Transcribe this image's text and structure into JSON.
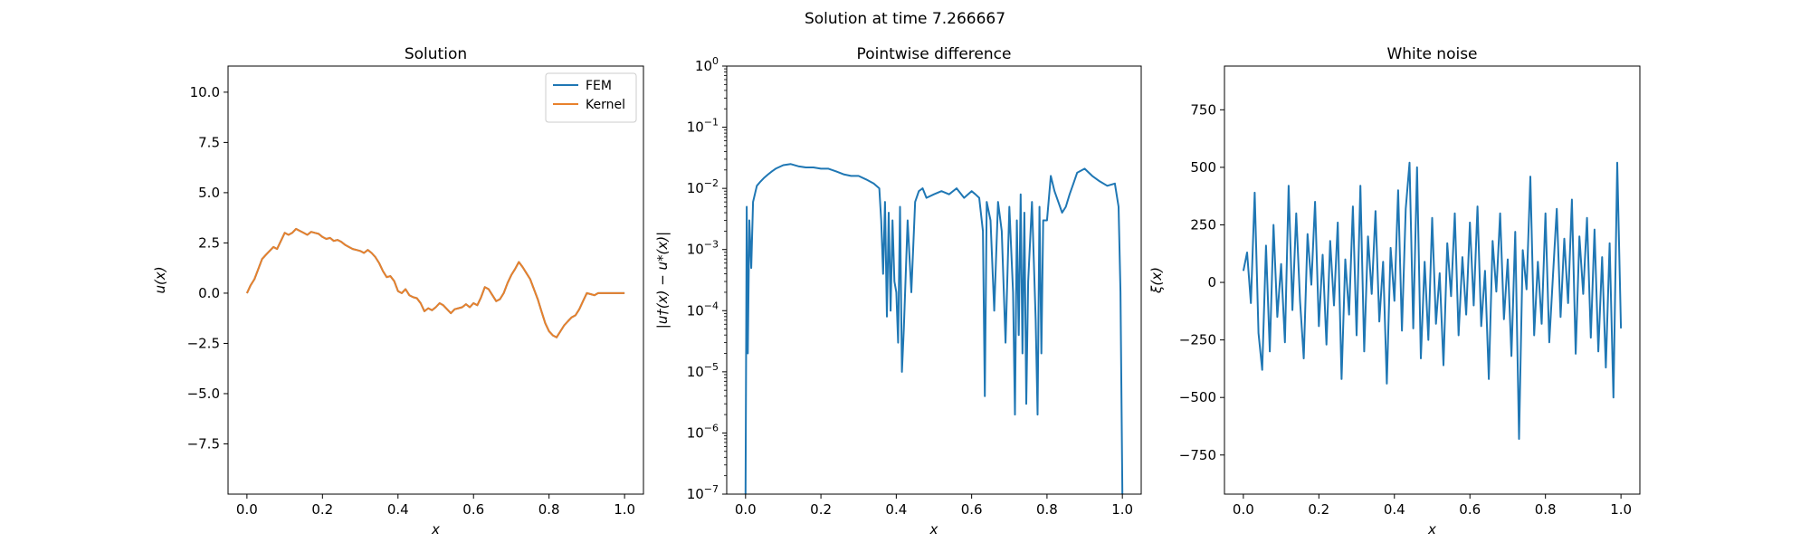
{
  "figure": {
    "suptitle": "Solution at time 7.266667"
  },
  "colors": {
    "series_blue": "#1f77b4",
    "series_orange": "#e8812c"
  },
  "chart_data": [
    {
      "type": "line",
      "title": "Solution",
      "xlabel": "x",
      "ylabel": "u(x)",
      "xlim": [
        -0.05,
        1.05
      ],
      "ylim": [
        -10,
        11.3
      ],
      "xticks": [
        0.0,
        0.2,
        0.4,
        0.6,
        0.8,
        1.0
      ],
      "xtick_labels": [
        "0.0",
        "0.2",
        "0.4",
        "0.6",
        "0.8",
        "1.0"
      ],
      "yticks": [
        -7.5,
        -5.0,
        -2.5,
        0.0,
        2.5,
        5.0,
        7.5,
        10.0
      ],
      "ytick_labels": [
        "−7.5",
        "−5.0",
        "−2.5",
        "0.0",
        "2.5",
        "5.0",
        "7.5",
        "10.0"
      ],
      "legend": "top-right",
      "series": [
        {
          "name": "FEM",
          "color": "#1f77b4",
          "x": [
            0.0,
            0.01,
            0.02,
            0.03,
            0.04,
            0.05,
            0.06,
            0.07,
            0.08,
            0.09,
            0.1,
            0.11,
            0.12,
            0.13,
            0.14,
            0.15,
            0.16,
            0.17,
            0.18,
            0.19,
            0.2,
            0.21,
            0.22,
            0.23,
            0.24,
            0.25,
            0.26,
            0.27,
            0.28,
            0.29,
            0.3,
            0.31,
            0.32,
            0.33,
            0.34,
            0.35,
            0.36,
            0.37,
            0.38,
            0.39,
            0.4,
            0.41,
            0.42,
            0.43,
            0.44,
            0.45,
            0.46,
            0.47,
            0.48,
            0.49,
            0.5,
            0.51,
            0.52,
            0.53,
            0.54,
            0.55,
            0.56,
            0.57,
            0.58,
            0.59,
            0.6,
            0.61,
            0.62,
            0.63,
            0.64,
            0.65,
            0.66,
            0.67,
            0.68,
            0.69,
            0.7,
            0.71,
            0.72,
            0.73,
            0.74,
            0.75,
            0.76,
            0.77,
            0.78,
            0.79,
            0.8,
            0.81,
            0.82,
            0.83,
            0.84,
            0.85,
            0.86,
            0.87,
            0.88,
            0.89,
            0.9,
            0.91,
            0.92,
            0.93,
            0.94,
            0.95,
            0.96,
            0.97,
            0.98,
            0.99,
            1.0
          ],
          "y": [
            0.0,
            0.4,
            0.7,
            1.2,
            1.7,
            1.9,
            2.1,
            2.3,
            2.2,
            2.6,
            3.0,
            2.9,
            3.0,
            3.2,
            3.1,
            3.0,
            2.9,
            3.05,
            3.0,
            2.95,
            2.8,
            2.7,
            2.75,
            2.6,
            2.65,
            2.55,
            2.4,
            2.3,
            2.2,
            2.15,
            2.1,
            2.0,
            2.15,
            2.0,
            1.8,
            1.5,
            1.1,
            0.8,
            0.85,
            0.6,
            0.1,
            0.0,
            0.2,
            -0.1,
            -0.2,
            -0.25,
            -0.5,
            -0.9,
            -0.75,
            -0.85,
            -0.7,
            -0.5,
            -0.6,
            -0.8,
            -1.0,
            -0.8,
            -0.75,
            -0.7,
            -0.55,
            -0.7,
            -0.5,
            -0.6,
            -0.2,
            0.3,
            0.2,
            -0.1,
            -0.4,
            -0.3,
            0.0,
            0.5,
            0.9,
            1.2,
            1.55,
            1.3,
            1.0,
            0.7,
            0.2,
            -0.3,
            -0.9,
            -1.5,
            -1.9,
            -2.1,
            -2.2,
            -1.9,
            -1.6,
            -1.4,
            -1.2,
            -1.1,
            -0.8,
            -0.4,
            0.0,
            -0.05,
            -0.1,
            0.0,
            0.0,
            0.0,
            0.0,
            0.0,
            0.0,
            0.0,
            0.0
          ]
        },
        {
          "name": "Kernel",
          "color": "#e8812c",
          "x": [
            0.0,
            0.01,
            0.02,
            0.03,
            0.04,
            0.05,
            0.06,
            0.07,
            0.08,
            0.09,
            0.1,
            0.11,
            0.12,
            0.13,
            0.14,
            0.15,
            0.16,
            0.17,
            0.18,
            0.19,
            0.2,
            0.21,
            0.22,
            0.23,
            0.24,
            0.25,
            0.26,
            0.27,
            0.28,
            0.29,
            0.3,
            0.31,
            0.32,
            0.33,
            0.34,
            0.35,
            0.36,
            0.37,
            0.38,
            0.39,
            0.4,
            0.41,
            0.42,
            0.43,
            0.44,
            0.45,
            0.46,
            0.47,
            0.48,
            0.49,
            0.5,
            0.51,
            0.52,
            0.53,
            0.54,
            0.55,
            0.56,
            0.57,
            0.58,
            0.59,
            0.6,
            0.61,
            0.62,
            0.63,
            0.64,
            0.65,
            0.66,
            0.67,
            0.68,
            0.69,
            0.7,
            0.71,
            0.72,
            0.73,
            0.74,
            0.75,
            0.76,
            0.77,
            0.78,
            0.79,
            0.8,
            0.81,
            0.82,
            0.83,
            0.84,
            0.85,
            0.86,
            0.87,
            0.88,
            0.89,
            0.9,
            0.91,
            0.92,
            0.93,
            0.94,
            0.95,
            0.96,
            0.97,
            0.98,
            0.99,
            1.0
          ],
          "y": [
            0.0,
            0.4,
            0.7,
            1.2,
            1.7,
            1.9,
            2.1,
            2.3,
            2.2,
            2.6,
            3.0,
            2.9,
            3.0,
            3.2,
            3.1,
            3.0,
            2.9,
            3.05,
            3.0,
            2.95,
            2.8,
            2.7,
            2.75,
            2.6,
            2.65,
            2.55,
            2.4,
            2.3,
            2.2,
            2.15,
            2.1,
            2.0,
            2.15,
            2.0,
            1.8,
            1.5,
            1.1,
            0.8,
            0.85,
            0.6,
            0.1,
            0.0,
            0.2,
            -0.1,
            -0.2,
            -0.25,
            -0.5,
            -0.9,
            -0.75,
            -0.85,
            -0.7,
            -0.5,
            -0.6,
            -0.8,
            -1.0,
            -0.8,
            -0.75,
            -0.7,
            -0.55,
            -0.7,
            -0.5,
            -0.6,
            -0.2,
            0.3,
            0.2,
            -0.1,
            -0.4,
            -0.3,
            0.0,
            0.5,
            0.9,
            1.2,
            1.55,
            1.3,
            1.0,
            0.7,
            0.2,
            -0.3,
            -0.9,
            -1.5,
            -1.9,
            -2.1,
            -2.2,
            -1.9,
            -1.6,
            -1.4,
            -1.2,
            -1.1,
            -0.8,
            -0.4,
            0.0,
            -0.05,
            -0.1,
            0.0,
            0.0,
            0.0,
            0.0,
            0.0,
            0.0,
            0.0,
            0.0
          ]
        }
      ]
    },
    {
      "type": "line",
      "title": "Pointwise difference",
      "xlabel": "x",
      "ylabel": "|u†(x) − u*(x)|",
      "yscale": "log",
      "xlim": [
        -0.05,
        1.05
      ],
      "ylim": [
        1e-07,
        1
      ],
      "xticks": [
        0.0,
        0.2,
        0.4,
        0.6,
        0.8,
        1.0
      ],
      "xtick_labels": [
        "0.0",
        "0.2",
        "0.4",
        "0.6",
        "0.8",
        "1.0"
      ],
      "yticks": [
        1e-07,
        1e-06,
        1e-05,
        0.0001,
        0.001,
        0.01,
        0.1,
        1
      ],
      "ytick_exponents": [
        "−7",
        "−6",
        "−5",
        "−4",
        "−3",
        "−2",
        "−1",
        "0"
      ],
      "series": [
        {
          "color": "#1f77b4",
          "x": [
            0.0,
            0.003,
            0.006,
            0.01,
            0.015,
            0.02,
            0.03,
            0.04,
            0.05,
            0.06,
            0.07,
            0.08,
            0.1,
            0.12,
            0.14,
            0.16,
            0.18,
            0.2,
            0.22,
            0.24,
            0.26,
            0.28,
            0.3,
            0.32,
            0.34,
            0.355,
            0.36,
            0.365,
            0.37,
            0.375,
            0.38,
            0.385,
            0.39,
            0.395,
            0.4,
            0.405,
            0.41,
            0.415,
            0.42,
            0.43,
            0.44,
            0.45,
            0.46,
            0.47,
            0.48,
            0.5,
            0.52,
            0.54,
            0.56,
            0.58,
            0.6,
            0.61,
            0.62,
            0.63,
            0.635,
            0.64,
            0.65,
            0.66,
            0.67,
            0.68,
            0.69,
            0.7,
            0.71,
            0.715,
            0.72,
            0.725,
            0.73,
            0.735,
            0.74,
            0.745,
            0.75,
            0.76,
            0.77,
            0.775,
            0.78,
            0.785,
            0.79,
            0.8,
            0.81,
            0.82,
            0.83,
            0.84,
            0.85,
            0.86,
            0.87,
            0.88,
            0.9,
            0.92,
            0.94,
            0.96,
            0.98,
            0.99,
            0.995,
            1.0
          ],
          "y": [
            1e-07,
            0.005,
            2e-05,
            0.003,
            0.0005,
            0.006,
            0.011,
            0.013,
            0.015,
            0.017,
            0.019,
            0.021,
            0.024,
            0.025,
            0.023,
            0.022,
            0.022,
            0.021,
            0.021,
            0.019,
            0.017,
            0.016,
            0.016,
            0.014,
            0.012,
            0.01,
            0.003,
            0.0004,
            0.006,
            8e-05,
            0.004,
            0.0001,
            0.003,
            0.0003,
            0.0002,
            3e-05,
            0.005,
            1e-05,
            5e-05,
            0.003,
            0.0002,
            0.006,
            0.009,
            0.01,
            0.007,
            0.008,
            0.009,
            0.008,
            0.01,
            0.007,
            0.009,
            0.008,
            0.007,
            0.002,
            4e-06,
            0.006,
            0.003,
            0.0001,
            0.006,
            0.002,
            3e-05,
            0.005,
            0.0002,
            2e-06,
            0.003,
            4e-05,
            0.008,
            2e-05,
            0.004,
            3e-06,
            0.0003,
            0.006,
            7e-05,
            2e-06,
            0.005,
            2e-05,
            0.003,
            0.003,
            0.016,
            0.009,
            0.006,
            0.004,
            0.005,
            0.008,
            0.012,
            0.018,
            0.021,
            0.016,
            0.013,
            0.011,
            0.012,
            0.005,
            0.0002,
            1e-07
          ]
        }
      ]
    },
    {
      "type": "line",
      "title": "White noise",
      "xlabel": "x",
      "ylabel": "ξ(x)",
      "xlim": [
        -0.05,
        1.05
      ],
      "ylim": [
        -920,
        940
      ],
      "xticks": [
        0.0,
        0.2,
        0.4,
        0.6,
        0.8,
        1.0
      ],
      "xtick_labels": [
        "0.0",
        "0.2",
        "0.4",
        "0.6",
        "0.8",
        "1.0"
      ],
      "yticks": [
        -750,
        -500,
        -250,
        0,
        250,
        500,
        750
      ],
      "ytick_labels": [
        "−750",
        "−500",
        "−250",
        "0",
        "250",
        "500",
        "750"
      ],
      "series": [
        {
          "color": "#1f77b4",
          "x": [
            0.0,
            0.01,
            0.02,
            0.03,
            0.04,
            0.05,
            0.06,
            0.07,
            0.08,
            0.09,
            0.1,
            0.11,
            0.12,
            0.13,
            0.14,
            0.15,
            0.16,
            0.17,
            0.18,
            0.19,
            0.2,
            0.21,
            0.22,
            0.23,
            0.24,
            0.25,
            0.26,
            0.27,
            0.28,
            0.29,
            0.3,
            0.31,
            0.32,
            0.33,
            0.34,
            0.35,
            0.36,
            0.37,
            0.38,
            0.39,
            0.4,
            0.41,
            0.42,
            0.43,
            0.44,
            0.45,
            0.46,
            0.47,
            0.48,
            0.49,
            0.5,
            0.51,
            0.52,
            0.53,
            0.54,
            0.55,
            0.56,
            0.57,
            0.58,
            0.59,
            0.6,
            0.61,
            0.62,
            0.63,
            0.64,
            0.65,
            0.66,
            0.67,
            0.68,
            0.69,
            0.7,
            0.71,
            0.72,
            0.73,
            0.74,
            0.75,
            0.76,
            0.77,
            0.78,
            0.79,
            0.8,
            0.81,
            0.82,
            0.83,
            0.84,
            0.85,
            0.86,
            0.87,
            0.88,
            0.89,
            0.9,
            0.91,
            0.92,
            0.93,
            0.94,
            0.95,
            0.96,
            0.97,
            0.98,
            0.99,
            1.0
          ],
          "y": [
            50,
            130,
            -90,
            390,
            -220,
            -380,
            160,
            -300,
            250,
            -150,
            80,
            -260,
            420,
            -120,
            300,
            -80,
            -330,
            210,
            -10,
            350,
            -190,
            120,
            -270,
            180,
            -100,
            260,
            -420,
            100,
            -140,
            330,
            -230,
            420,
            -300,
            200,
            -50,
            310,
            -170,
            90,
            -440,
            150,
            -80,
            400,
            -210,
            320,
            520,
            -200,
            500,
            -330,
            90,
            -250,
            280,
            -180,
            40,
            -360,
            170,
            -60,
            300,
            -230,
            110,
            -140,
            260,
            -100,
            330,
            -190,
            50,
            -420,
            180,
            -40,
            300,
            -160,
            100,
            -320,
            220,
            -680,
            140,
            -30,
            460,
            -230,
            90,
            -180,
            300,
            -260,
            30,
            320,
            -150,
            190,
            -90,
            360,
            -310,
            200,
            -50,
            280,
            -240,
            230,
            -300,
            110,
            -370,
            170,
            -500,
            520,
            -200
          ]
        }
      ]
    }
  ]
}
